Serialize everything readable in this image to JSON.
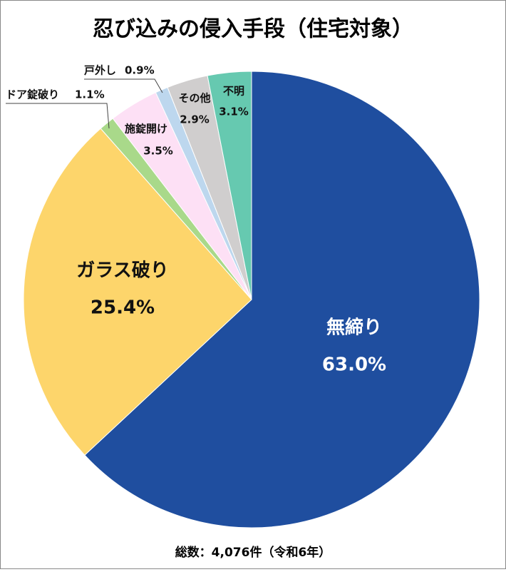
{
  "chart_data": {
    "type": "pie",
    "title": "忍び込みの侵入手段（住宅対象）",
    "note": "総数：4,076件（令和6年）",
    "categories": [
      "無締り",
      "ガラス破り",
      "ドア錠破り",
      "施錠開け",
      "戸外し",
      "その他",
      "不明"
    ],
    "values": [
      63.0,
      25.4,
      1.1,
      3.5,
      0.9,
      2.9,
      3.1
    ],
    "value_labels": [
      "63.0%",
      "25.4%",
      "1.1%",
      "3.5%",
      "0.9%",
      "2.9%",
      "3.1%"
    ],
    "colors": [
      "#1f4e9f",
      "#fdd56b",
      "#a9d98a",
      "#fde0f5",
      "#bdd7ee",
      "#d0cece",
      "#66c9b0"
    ]
  }
}
